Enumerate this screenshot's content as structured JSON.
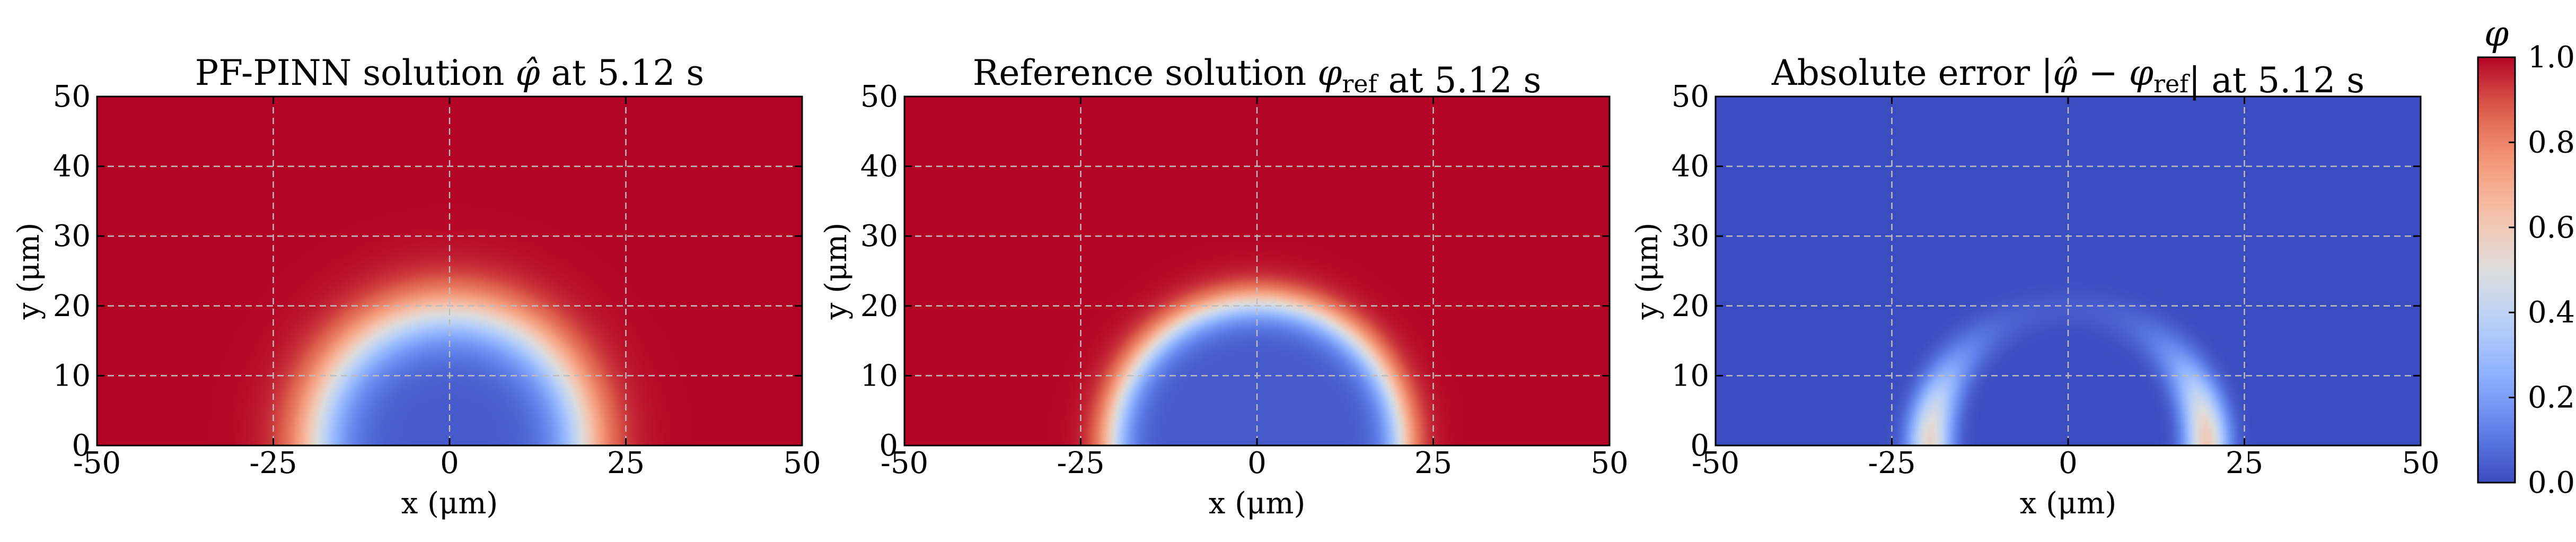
{
  "chart_data": {
    "type": "heatmap",
    "panels": [
      {
        "id": "pinn",
        "title": {
          "pre": "PF-PINN solution ",
          "sym": "φ",
          "hat": true,
          "sub": "",
          "abs": false,
          "post": " at 5.12 s"
        },
        "xlabel": "x (μm)",
        "ylabel": "y (μm)",
        "xlim": [
          -50,
          50
        ],
        "ylim": [
          0,
          50
        ],
        "xticks": [
          "-50",
          "-25",
          "0",
          "25",
          "50"
        ],
        "yticks": [
          "0",
          "10",
          "20",
          "30",
          "40",
          "50"
        ],
        "field": {
          "kind": "disk",
          "radius": 19.0,
          "interface_width": 5.0,
          "inside": 0.03,
          "outside": 1.0
        },
        "grid": true
      },
      {
        "id": "reference",
        "title": {
          "pre": "Reference solution ",
          "sym": "φ",
          "hat": false,
          "sub": "ref",
          "abs": false,
          "post": " at 5.12 s"
        },
        "xlabel": "x (μm)",
        "ylabel": "y (μm)",
        "xlim": [
          -50,
          50
        ],
        "ylim": [
          0,
          50
        ],
        "xticks": [
          "-50",
          "-25",
          "0",
          "25",
          "50"
        ],
        "yticks": [
          "0",
          "10",
          "20",
          "30",
          "40",
          "50"
        ],
        "field": {
          "kind": "disk",
          "radius": 20.5,
          "interface_width": 3.0,
          "inside": 0.03,
          "outside": 1.0
        },
        "grid": true
      },
      {
        "id": "error",
        "title": {
          "pre": "Absolute error |",
          "sym": "φ",
          "hat": true,
          "sub": "",
          "abs": true,
          "post": "| at 5.12 s"
        },
        "xlabel": "x (μm)",
        "ylabel": "y (μm)",
        "xlim": [
          -50,
          50
        ],
        "ylim": [
          0,
          50
        ],
        "xticks": [
          "-50",
          "-25",
          "0",
          "25",
          "50"
        ],
        "yticks": [
          "0",
          "10",
          "20",
          "30",
          "40",
          "50"
        ],
        "field": {
          "kind": "ring",
          "radius": 19.6,
          "width": 3.0,
          "peak_left": 0.55,
          "peak_right": 0.6,
          "base": 0.0
        },
        "grid": true
      }
    ],
    "colorbar": {
      "label": "φ",
      "range": [
        0.0,
        1.0
      ],
      "ticks": [
        "0.0",
        "0.2",
        "0.4",
        "0.6",
        "0.8",
        "1.0"
      ],
      "colormap": "coolwarm"
    }
  }
}
